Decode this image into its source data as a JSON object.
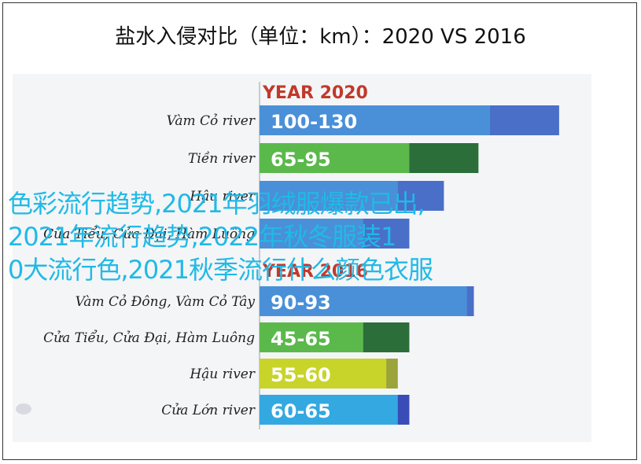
{
  "title": "盐水入侵对比（单位：km）：2020 VS 2016",
  "chart_data": [
    {
      "type": "bar",
      "orientation": "horizontal",
      "title": "YEAR 2020",
      "categories": [
        "Vàm Cỏ river",
        "Tiền river",
        "Hậu river",
        "Cửa Tiểu, Cửa Đại, Hàm Luông"
      ],
      "series": [
        {
          "values": [
            100,
            65,
            60,
            45
          ],
          "color": "#4a90d9"
        },
        {
          "values": [
            130,
            95,
            80,
            65
          ],
          "color": "#4a6fc9"
        }
      ],
      "labels": [
        "100-130",
        "65-95",
        "",
        ""
      ]
    },
    {
      "type": "bar",
      "orientation": "horizontal",
      "title": "YEAR 2016",
      "categories": [
        "Vàm Cỏ Đông, Vàm Cỏ Tây",
        "Cửa Tiểu, Cửa Đại, Hàm Luông",
        "Hậu river",
        "Cửa Lớn river"
      ],
      "series": [
        {
          "values": [
            90,
            45,
            55,
            60
          ]
        },
        {
          "values": [
            93,
            65,
            60,
            65
          ]
        }
      ],
      "labels": [
        "90-93",
        "45-65",
        "55-60",
        "60-65"
      ],
      "colors_min": [
        "#4a90d9",
        "#5bb84a",
        "#c9d42a",
        "#34a8e0"
      ],
      "colors_max": [
        "#4a6fc9",
        "#2b6e3a",
        "#9aa43a",
        "#3a4cb8"
      ]
    }
  ],
  "overlay": {
    "lines": [
      "色彩流行趋势,2021年羽绒服爆款已出,",
      "2021年流行趋势,2022年秋冬服装1",
      "0大流行色,2021秋季流行什么颜色衣服"
    ]
  }
}
